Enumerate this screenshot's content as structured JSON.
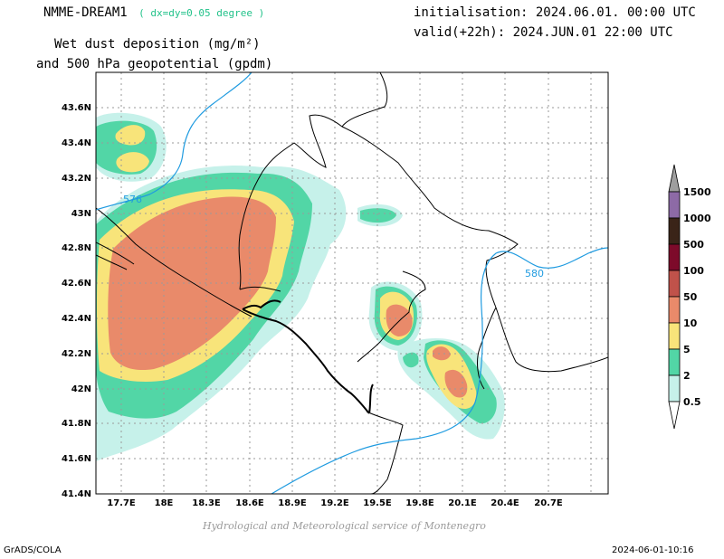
{
  "header": {
    "model_name": "NMME-DREAM1",
    "resolution": "( dx=dy=0.05 degree )",
    "title_line1": "Wet dust deposition (mg/m²)",
    "title_line2": "and 500 hPa geopotential (gpdm)",
    "init": "initialisation: 2024.06.01. 00:00 UTC",
    "valid": "valid(+22h): 2024.JUN.01 22:00 UTC"
  },
  "map": {
    "lat_labels": [
      "43.6N",
      "43.4N",
      "43.2N",
      "43N",
      "42.8N",
      "42.6N",
      "42.4N",
      "42.2N",
      "42N",
      "41.8N",
      "41.6N",
      "41.4N"
    ],
    "lon_labels": [
      "17.7E",
      "18E",
      "18.3E",
      "18.6E",
      "18.9E",
      "19.2E",
      "19.5E",
      "19.8E",
      "20.1E",
      "20.4E",
      "20.7E"
    ],
    "contour_labels": [
      "576",
      "580"
    ],
    "contour_color": "#1f9be0"
  },
  "legend": {
    "levels": [
      "1500",
      "1000",
      "500",
      "100",
      "50",
      "10",
      "5",
      "2",
      "0.5"
    ],
    "colors": [
      "#9e9e9e",
      "#8d6aa6",
      "#3a2418",
      "#7d0a2a",
      "#c0524a",
      "#e98a6a",
      "#f8e47a",
      "#52d6a6",
      "#c6f1ea",
      "#ffffff"
    ]
  },
  "footer": {
    "credit": "Hydrological and Meteorological service of Montenegro",
    "software": "GrADS/COLA",
    "timestamp": "2024-06-01-10:16"
  }
}
